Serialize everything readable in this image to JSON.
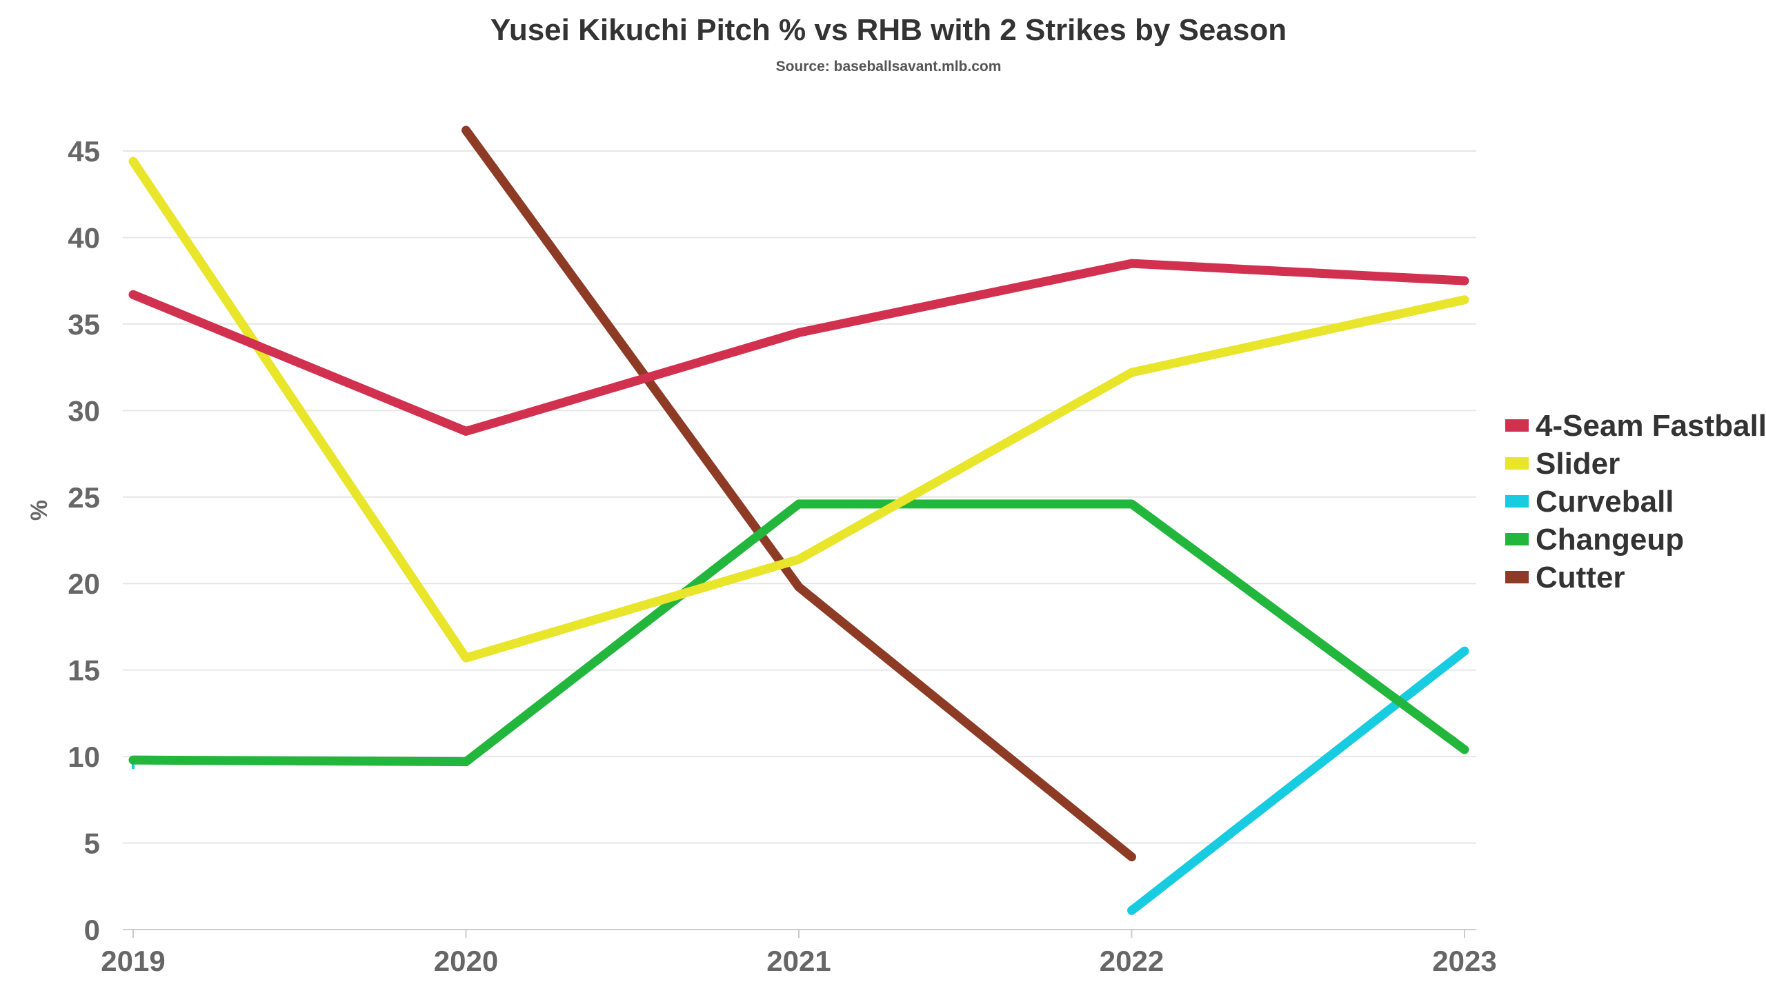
{
  "chart_data": {
    "type": "line",
    "title": "Yusei Kikuchi Pitch % vs RHB with 2 Strikes by Season",
    "subtitle": "Source: baseballsavant.mlb.com",
    "xlabel": "",
    "ylabel": "%",
    "x": [
      "2019",
      "2020",
      "2021",
      "2022",
      "2023"
    ],
    "ylim": [
      0,
      45
    ],
    "yticks": [
      0,
      5,
      10,
      15,
      20,
      25,
      30,
      35,
      40,
      45
    ],
    "grid": true,
    "legend_position": "right",
    "series": [
      {
        "name": "4-Seam Fastball",
        "color": "#d1314f",
        "values": [
          36.7,
          28.8,
          34.5,
          38.5,
          37.5
        ]
      },
      {
        "name": "Slider",
        "color": "#e8e52a",
        "values": [
          44.4,
          15.7,
          21.4,
          32.2,
          36.4
        ]
      },
      {
        "name": "Curveball",
        "color": "#17cbe0",
        "values": [
          9.6,
          null,
          null,
          1.1,
          16.1
        ]
      },
      {
        "name": "Changeup",
        "color": "#22b63c",
        "values": [
          9.8,
          9.7,
          24.6,
          24.6,
          10.4
        ]
      },
      {
        "name": "Cutter",
        "color": "#8e3b26",
        "values": [
          null,
          46.2,
          19.8,
          4.2,
          null
        ]
      }
    ]
  }
}
